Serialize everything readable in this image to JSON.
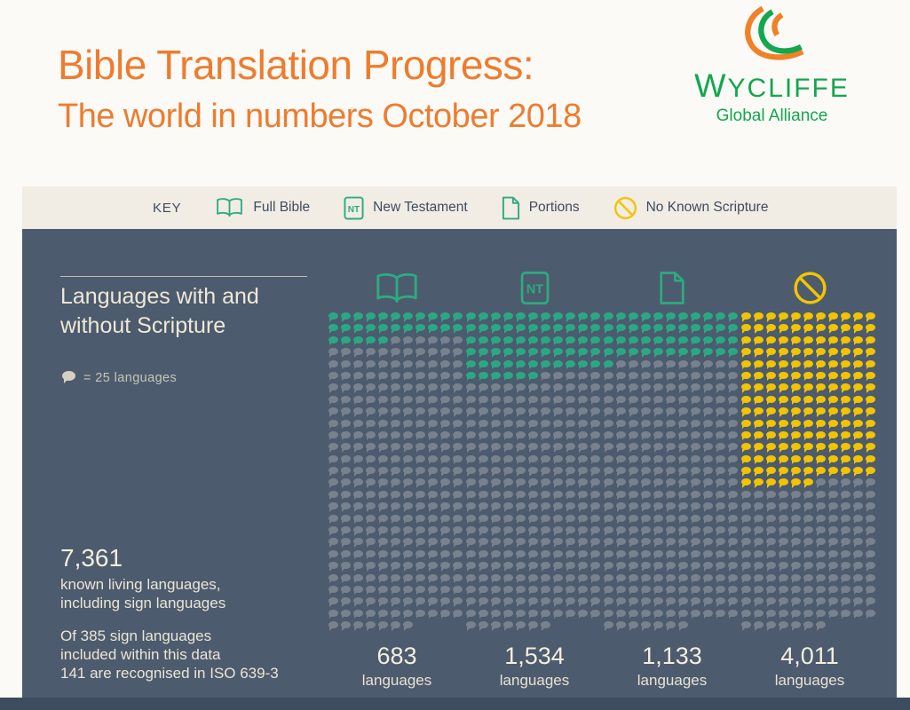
{
  "colors": {
    "page_bg": "#fbfaf7",
    "keybar_bg": "#f1ece4",
    "panel_bg": "#4c5b6d",
    "footer_bg": "#3d4c5f",
    "title_orange": "#ee7c2e",
    "logo_green": "#13a74e",
    "logo_orange": "#f08126",
    "dark_text": "#3e4d5e",
    "cream_text": "#f2ebdb"
  },
  "header": {
    "title": "Bible Translation Progress:",
    "subtitle": "The world in numbers October 2018"
  },
  "logo": {
    "wordmark": "Wycliffe",
    "tagline": "Global Alliance"
  },
  "icons": {
    "nt_badge_text": "NT"
  },
  "key": {
    "label": "KEY",
    "items": [
      {
        "label": "Full Bible",
        "icon": "open-book-icon",
        "color": "#2cab81"
      },
      {
        "label": "New Testament",
        "icon": "nt-badge-icon",
        "color": "#2cab81"
      },
      {
        "label": "Portions",
        "icon": "portions-page-icon",
        "color": "#2cab81"
      },
      {
        "label": "No Known Scripture",
        "icon": "no-scripture-icon",
        "color": "#f2c400"
      }
    ]
  },
  "main": {
    "heading_lines": [
      "Languages with and",
      "without Scripture"
    ],
    "legend": {
      "text": "= 25 languages",
      "dot_color": "#d6d0c0"
    },
    "total": {
      "value": "7,361",
      "lines": [
        "known living languages,",
        "including sign languages"
      ]
    },
    "footnote_lines": [
      "Of 385 sign languages",
      "included within this data",
      "141 are recognised in ISO 639-3"
    ]
  },
  "chart_data": {
    "type": "pictogram",
    "title": "Languages with and without Scripture",
    "unit_per_dot": 25,
    "unit_note": "1 dot = 25 languages",
    "total_languages": 7361,
    "unfilled_color": "#78828f",
    "grid": {
      "dots_per_row": 11,
      "rows": 27,
      "full_rows": 26,
      "last_row_dots": 7,
      "total_dots_per_column": 293
    },
    "categories": [
      "Full Bible",
      "New Testament",
      "Portions",
      "No Known Scripture"
    ],
    "values": [
      683,
      1534,
      1133,
      4011
    ],
    "columns": [
      {
        "category": "Full Bible",
        "icon": "open-book-icon",
        "icon_color": "#2cab81",
        "value": 683,
        "value_label": "683",
        "unit_label": "languages",
        "dots": 27,
        "dot_color": "#2aa884"
      },
      {
        "category": "New Testament",
        "icon": "nt-badge-icon",
        "icon_color": "#2cab81",
        "value": 1534,
        "value_label": "1,534",
        "unit_label": "languages",
        "dots": 61,
        "dot_color": "#2aa884"
      },
      {
        "category": "Portions",
        "icon": "portions-page-icon",
        "icon_color": "#2cab81",
        "value": 1133,
        "value_label": "1,133",
        "unit_label": "languages",
        "dots": 45,
        "dot_color": "#2aa884"
      },
      {
        "category": "No Known Scripture",
        "icon": "no-scripture-icon",
        "icon_color": "#f2c400",
        "value": 4011,
        "value_label": "4,011",
        "unit_label": "languages",
        "dots": 160,
        "dot_color": "#f2c400"
      }
    ]
  }
}
